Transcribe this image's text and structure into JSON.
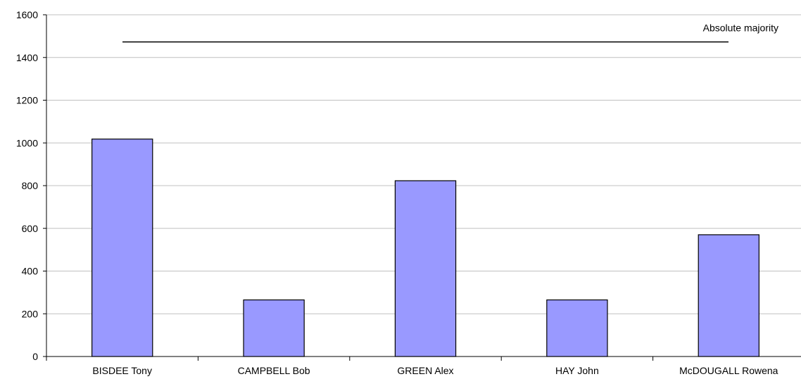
{
  "chart_data": {
    "type": "bar",
    "categories": [
      "BISDEE Tony",
      "CAMPBELL Bob",
      "GREEN Alex",
      "HAY John",
      "McDOUGALL Rowena"
    ],
    "values": [
      1018,
      265,
      823,
      265,
      570
    ],
    "ylim": [
      0,
      1600
    ],
    "yticks": [
      0,
      200,
      400,
      600,
      800,
      1000,
      1200,
      1400,
      1600
    ],
    "grid": true,
    "colors": {
      "bar_fill": "#9999ff",
      "bar_stroke": "#000000",
      "grid": "#c0c0c0",
      "axis": "#000000"
    },
    "annotations": [
      {
        "type": "hline",
        "label": "Absolute majority",
        "value": 1473
      }
    ]
  }
}
